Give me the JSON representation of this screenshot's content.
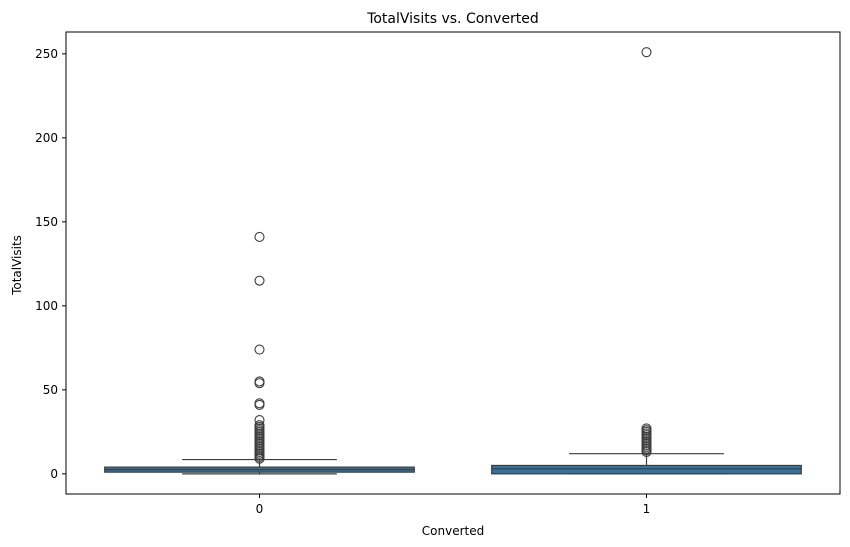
{
  "chart_data": {
    "type": "box",
    "title": "TotalVisits vs. Converted",
    "xlabel": "Converted",
    "ylabel": "TotalVisits",
    "categories": [
      "0",
      "1"
    ],
    "ylim": [
      -12,
      263
    ],
    "yticks": [
      0,
      50,
      100,
      150,
      200,
      250
    ],
    "grid": false,
    "box_color": "#3274a1",
    "boxes": [
      {
        "category": "0",
        "whisker_low": 0,
        "q1": 1,
        "median": 2.5,
        "q3": 4,
        "whisker_high": 8.5,
        "outliers": [
          9,
          10,
          11,
          12,
          13,
          14,
          15,
          16,
          17,
          18,
          19,
          20,
          21,
          22,
          23,
          24,
          25,
          26,
          27,
          28,
          29,
          32,
          41,
          42,
          54,
          55,
          74,
          115,
          141
        ]
      },
      {
        "category": "1",
        "whisker_low": 0,
        "q1": 0,
        "median": 3,
        "q3": 5,
        "whisker_high": 12,
        "outliers": [
          13,
          14,
          15,
          16,
          17,
          18,
          19,
          20,
          21,
          22,
          23,
          24,
          25,
          26,
          27,
          251
        ]
      }
    ]
  }
}
